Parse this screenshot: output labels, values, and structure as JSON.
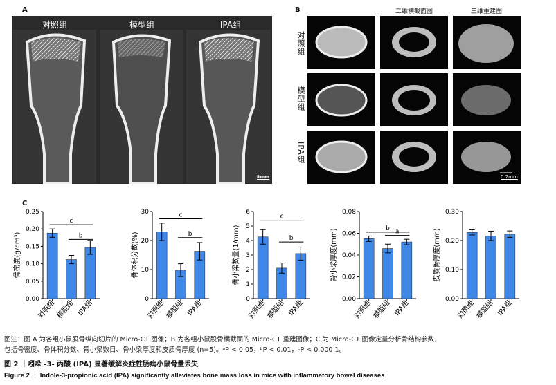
{
  "panel_a": {
    "letter": "A",
    "titles": [
      "对照组",
      "模型组",
      "IPA组"
    ],
    "scale": "1mm"
  },
  "panel_b": {
    "letter": "B",
    "col_headers": [
      "二维横截面图",
      "三维重建图"
    ],
    "row_labels": [
      "对照组",
      "模型组",
      "IPA组"
    ],
    "scale": "0.2mm"
  },
  "panel_c": {
    "letter": "C"
  },
  "chart_data": [
    {
      "type": "bar",
      "categories": [
        "对照组",
        "模型组",
        "IPA组"
      ],
      "values": [
        0.188,
        0.112,
        0.147
      ],
      "errors": [
        0.012,
        0.012,
        0.02
      ],
      "ylabel": "骨密度(g/cm³)",
      "ylim": [
        0,
        0.25
      ],
      "yticks": [
        "0.00",
        "0.05",
        "0.10",
        "0.15",
        "0.20",
        "0.25"
      ],
      "tickvals": [
        0,
        0.05,
        0.1,
        0.15,
        0.2,
        0.25
      ],
      "sig": [
        {
          "from": 0,
          "to": 2,
          "label": "c",
          "y": 0.212
        },
        {
          "from": 1,
          "to": 2,
          "label": "b",
          "y": 0.17
        }
      ]
    },
    {
      "type": "bar",
      "categories": [
        "对照组",
        "模型组",
        "IPA组"
      ],
      "values": [
        23,
        9.8,
        16.3
      ],
      "errors": [
        3,
        2.2,
        3
      ],
      "ylabel": "骨体积分数(%)",
      "ylim": [
        0,
        30
      ],
      "yticks": [
        "0",
        "10",
        "20",
        "30"
      ],
      "tickvals": [
        0,
        10,
        20,
        30
      ],
      "sig": [
        {
          "from": 0,
          "to": 2,
          "label": "c",
          "y": 27.5
        },
        {
          "from": 1,
          "to": 2,
          "label": "b",
          "y": 21.0
        }
      ]
    },
    {
      "type": "bar",
      "categories": [
        "对照组",
        "模型组",
        "IPA组"
      ],
      "values": [
        4.25,
        2.1,
        3.1
      ],
      "errors": [
        0.5,
        0.35,
        0.45
      ],
      "ylabel": "骨小梁数量(1/mm)",
      "ylim": [
        0,
        6
      ],
      "yticks": [
        "0",
        "1",
        "2",
        "3",
        "4",
        "5",
        "6"
      ],
      "tickvals": [
        0,
        1,
        2,
        3,
        4,
        5,
        6
      ],
      "sig": [
        {
          "from": 0,
          "to": 2,
          "label": "c",
          "y": 5.4
        },
        {
          "from": 1,
          "to": 2,
          "label": "b",
          "y": 3.9
        }
      ]
    },
    {
      "type": "bar",
      "categories": [
        "对照组",
        "模型组",
        "IPA组"
      ],
      "values": [
        0.055,
        0.046,
        0.052
      ],
      "errors": [
        0.0025,
        0.004,
        0.0025
      ],
      "ylabel": "骨小梁厚度(mm)",
      "ylim": [
        0,
        0.08
      ],
      "yticks": [
        "0.00",
        "0.02",
        "0.04",
        "0.06",
        "0.08"
      ],
      "tickvals": [
        0,
        0.02,
        0.04,
        0.06,
        0.08
      ],
      "sig": [
        {
          "from": 0,
          "to": 2,
          "label": "b",
          "y": 0.061
        },
        {
          "from": 1,
          "to": 2,
          "label": "a",
          "y": 0.058
        }
      ]
    },
    {
      "type": "bar",
      "categories": [
        "对照组",
        "模型组",
        "IPA组"
      ],
      "values": [
        0.228,
        0.216,
        0.222
      ],
      "errors": [
        0.009,
        0.016,
        0.011
      ],
      "ylabel": "皮质骨厚度(mm)",
      "ylim": [
        0,
        0.3
      ],
      "yticks": [
        "0.00",
        "0.10",
        "0.20",
        "0.30"
      ],
      "tickvals": [
        0,
        0.1,
        0.2,
        0.3
      ],
      "sig": []
    }
  ],
  "caption": {
    "line1": "图注：图 A 为各组小鼠股骨纵向切片的 Micro-CT 图像；B 为各组小鼠股骨横截面的 Micro-CT 重建图像；C 为 Micro-CT 图像定量分析骨结构参数，",
    "line2": "包括骨密度、骨体积分数、骨小梁数目、骨小梁厚度和皮质骨厚度 (n=5)。ᵃP < 0.05，ᵇP < 0.01，ᶜP < 0.000 1。",
    "fig_cn": "图 2 ｜吲哚 -3- 丙酸 (IPA) 显著缓解炎症性肠病小鼠骨量丢失",
    "fig_en": "Figure 2 ｜ Indole-3-propionic acid (IPA) significantly alleviates bone mass loss in mice with inflammatory bowel diseases"
  },
  "colors": {
    "bar": "#3f88e8",
    "ct_bg": "#2b2b2b"
  }
}
